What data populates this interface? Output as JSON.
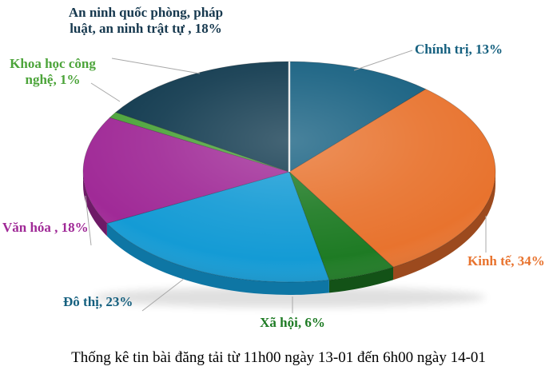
{
  "chart_data": {
    "type": "pie",
    "projection": "3d",
    "direction": "clockwise",
    "start_angle_deg": 0,
    "caption": "Thống kê tin bài đăng tải từ 11h00 ngày 13-01 đến 6h00 ngày 14-01",
    "series": [
      {
        "name": "Chính trị",
        "value": 13,
        "unit": "%",
        "label": "Chính trị, 13%",
        "color": "#155F80",
        "side_color": "#0C4560",
        "text_color": "#15607F"
      },
      {
        "name": "Kinh tế",
        "value": 34,
        "unit": "%",
        "label": "Kinh tế, 34%",
        "color": "#E8732E",
        "side_color": "#9C4A1E",
        "text_color": "#E8732E"
      },
      {
        "name": "Xã hội",
        "value": 6,
        "unit": "%",
        "label": "Xã hội, 6%",
        "color": "#1E7B24",
        "side_color": "#135217",
        "text_color": "#1E7B24"
      },
      {
        "name": "Đô thị",
        "value": 23,
        "unit": "%",
        "label": "Đô thị, 23%",
        "color": "#149BD5",
        "side_color": "#0E76A4",
        "text_color": "#15607F"
      },
      {
        "name": "Văn hóa",
        "value": 18,
        "unit": "%",
        "label": "Văn hóa , 18%",
        "color": "#A02A97",
        "side_color": "#6E1A67",
        "text_color": "#A02A97"
      },
      {
        "name": "Khoa học công nghệ",
        "value": 1,
        "unit": "%",
        "label": "Khoa học công nghệ, 1%",
        "color": "#4CA43A",
        "side_color": "#2E6B23",
        "text_color": "#4CA43A"
      },
      {
        "name": "An ninh quốc phòng, pháp luật, an ninh trật tự",
        "value": 18,
        "unit": "%",
        "label": "An ninh quốc phòng, pháp luật, an ninh trật tự , 18%",
        "color": "#10394E",
        "side_color": "#0A2636",
        "text_color": "#16384E"
      }
    ]
  }
}
